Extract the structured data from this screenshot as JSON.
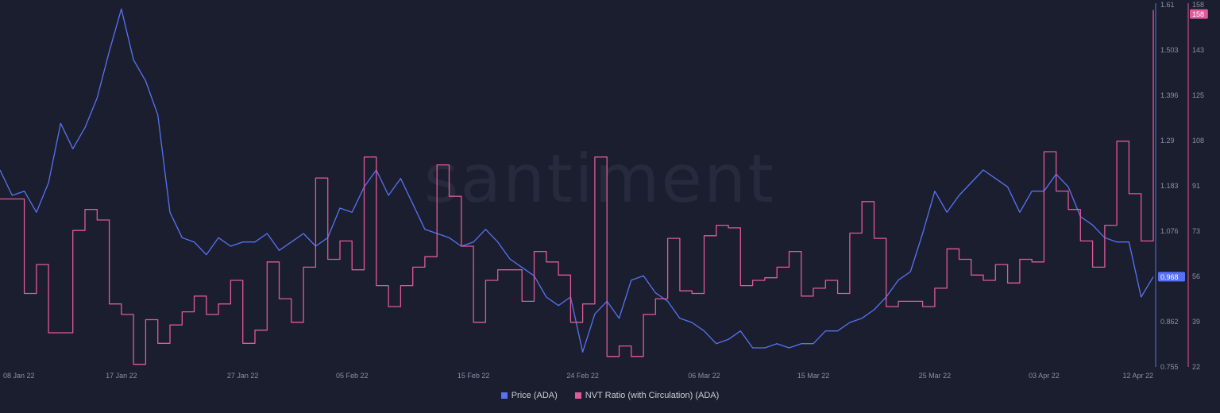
{
  "watermark": "santiment",
  "colors": {
    "background": "#1b1e2e",
    "price": "#5872f5",
    "nvt": "#e05a9a",
    "axis_text": "#8a90a6"
  },
  "legend": {
    "price_label": "Price (ADA)",
    "nvt_label": "NVT Ratio (with Circulation) (ADA)"
  },
  "chart_data": {
    "type": "line",
    "x_start": "2022-01-07",
    "x_end": "2022-04-12",
    "x_ticks": [
      "08 Jan 22",
      "17 Jan 22",
      "27 Jan 22",
      "05 Feb 22",
      "15 Feb 22",
      "24 Feb 22",
      "06 Mar 22",
      "15 Mar 22",
      "25 Mar 22",
      "03 Apr 22",
      "12 Apr 22"
    ],
    "x_tick_dates": [
      "2022-01-08",
      "2022-01-17",
      "2022-01-27",
      "2022-02-05",
      "2022-02-15",
      "2022-02-24",
      "2022-03-06",
      "2022-03-15",
      "2022-03-25",
      "2022-04-03",
      "2022-04-12"
    ],
    "grid": false,
    "legend_position": "bottom-center",
    "price_axis": {
      "ticks": [
        "1.61",
        "1.503",
        "1.396",
        "1.29",
        "1.183",
        "1.076",
        "0.968",
        "0.862",
        "0.755"
      ],
      "range": [
        0.755,
        1.61
      ],
      "current": "0.968"
    },
    "nvt_axis": {
      "ticks": [
        "158",
        "143",
        "125",
        "108",
        "91",
        "73",
        "56",
        "39",
        "22"
      ],
      "range": [
        22,
        160
      ],
      "current": "158"
    },
    "series": [
      {
        "name": "Price (ADA)",
        "axis": "price",
        "points": [
          [
            "2022-01-07",
            1.22
          ],
          [
            "2022-01-08",
            1.16
          ],
          [
            "2022-01-09",
            1.17
          ],
          [
            "2022-01-10",
            1.12
          ],
          [
            "2022-01-11",
            1.19
          ],
          [
            "2022-01-12",
            1.33
          ],
          [
            "2022-01-13",
            1.27
          ],
          [
            "2022-01-14",
            1.32
          ],
          [
            "2022-01-15",
            1.39
          ],
          [
            "2022-01-16",
            1.5
          ],
          [
            "2022-01-17",
            1.6
          ],
          [
            "2022-01-18",
            1.48
          ],
          [
            "2022-01-19",
            1.43
          ],
          [
            "2022-01-20",
            1.35
          ],
          [
            "2022-01-21",
            1.12
          ],
          [
            "2022-01-22",
            1.06
          ],
          [
            "2022-01-23",
            1.05
          ],
          [
            "2022-01-24",
            1.02
          ],
          [
            "2022-01-25",
            1.06
          ],
          [
            "2022-01-26",
            1.04
          ],
          [
            "2022-01-27",
            1.05
          ],
          [
            "2022-01-28",
            1.05
          ],
          [
            "2022-01-29",
            1.07
          ],
          [
            "2022-01-30",
            1.03
          ],
          [
            "2022-01-31",
            1.05
          ],
          [
            "2022-02-01",
            1.07
          ],
          [
            "2022-02-02",
            1.04
          ],
          [
            "2022-02-03",
            1.06
          ],
          [
            "2022-02-04",
            1.13
          ],
          [
            "2022-02-05",
            1.12
          ],
          [
            "2022-02-06",
            1.18
          ],
          [
            "2022-02-07",
            1.22
          ],
          [
            "2022-02-08",
            1.16
          ],
          [
            "2022-02-09",
            1.2
          ],
          [
            "2022-02-10",
            1.14
          ],
          [
            "2022-02-11",
            1.08
          ],
          [
            "2022-02-12",
            1.07
          ],
          [
            "2022-02-13",
            1.06
          ],
          [
            "2022-02-14",
            1.04
          ],
          [
            "2022-02-15",
            1.05
          ],
          [
            "2022-02-16",
            1.08
          ],
          [
            "2022-02-17",
            1.05
          ],
          [
            "2022-02-18",
            1.01
          ],
          [
            "2022-02-19",
            0.99
          ],
          [
            "2022-02-20",
            0.97
          ],
          [
            "2022-02-21",
            0.92
          ],
          [
            "2022-02-22",
            0.9
          ],
          [
            "2022-02-23",
            0.92
          ],
          [
            "2022-02-24",
            0.79
          ],
          [
            "2022-02-25",
            0.88
          ],
          [
            "2022-02-26",
            0.91
          ],
          [
            "2022-02-27",
            0.87
          ],
          [
            "2022-02-28",
            0.96
          ],
          [
            "2022-03-01",
            0.97
          ],
          [
            "2022-03-02",
            0.93
          ],
          [
            "2022-03-03",
            0.91
          ],
          [
            "2022-03-04",
            0.87
          ],
          [
            "2022-03-05",
            0.86
          ],
          [
            "2022-03-06",
            0.84
          ],
          [
            "2022-03-07",
            0.81
          ],
          [
            "2022-03-08",
            0.82
          ],
          [
            "2022-03-09",
            0.84
          ],
          [
            "2022-03-10",
            0.8
          ],
          [
            "2022-03-11",
            0.8
          ],
          [
            "2022-03-12",
            0.81
          ],
          [
            "2022-03-13",
            0.8
          ],
          [
            "2022-03-14",
            0.81
          ],
          [
            "2022-03-15",
            0.81
          ],
          [
            "2022-03-16",
            0.84
          ],
          [
            "2022-03-17",
            0.84
          ],
          [
            "2022-03-18",
            0.86
          ],
          [
            "2022-03-19",
            0.87
          ],
          [
            "2022-03-20",
            0.89
          ],
          [
            "2022-03-21",
            0.92
          ],
          [
            "2022-03-22",
            0.96
          ],
          [
            "2022-03-23",
            0.98
          ],
          [
            "2022-03-24",
            1.07
          ],
          [
            "2022-03-25",
            1.17
          ],
          [
            "2022-03-26",
            1.12
          ],
          [
            "2022-03-27",
            1.16
          ],
          [
            "2022-03-28",
            1.19
          ],
          [
            "2022-03-29",
            1.22
          ],
          [
            "2022-03-30",
            1.2
          ],
          [
            "2022-03-31",
            1.18
          ],
          [
            "2022-04-01",
            1.12
          ],
          [
            "2022-04-02",
            1.17
          ],
          [
            "2022-04-03",
            1.17
          ],
          [
            "2022-04-04",
            1.21
          ],
          [
            "2022-04-05",
            1.18
          ],
          [
            "2022-04-06",
            1.11
          ],
          [
            "2022-04-07",
            1.09
          ],
          [
            "2022-04-08",
            1.06
          ],
          [
            "2022-04-09",
            1.05
          ],
          [
            "2022-04-10",
            1.05
          ],
          [
            "2022-04-11",
            0.92
          ],
          [
            "2022-04-12",
            0.968
          ]
        ]
      },
      {
        "name": "NVT Ratio (with Circulation) (ADA)",
        "axis": "nvt",
        "points": [
          [
            "2022-01-07",
            86
          ],
          [
            "2022-01-09",
            50
          ],
          [
            "2022-01-10",
            61
          ],
          [
            "2022-01-11",
            35
          ],
          [
            "2022-01-13",
            74
          ],
          [
            "2022-01-14",
            82
          ],
          [
            "2022-01-15",
            78
          ],
          [
            "2022-01-16",
            46
          ],
          [
            "2022-01-17",
            42
          ],
          [
            "2022-01-18",
            23
          ],
          [
            "2022-01-19",
            40
          ],
          [
            "2022-01-20",
            31
          ],
          [
            "2022-01-21",
            38
          ],
          [
            "2022-01-22",
            43
          ],
          [
            "2022-01-23",
            49
          ],
          [
            "2022-01-24",
            42
          ],
          [
            "2022-01-25",
            46
          ],
          [
            "2022-01-26",
            55
          ],
          [
            "2022-01-27",
            31
          ],
          [
            "2022-01-28",
            36
          ],
          [
            "2022-01-29",
            62
          ],
          [
            "2022-01-30",
            48
          ],
          [
            "2022-01-31",
            39
          ],
          [
            "2022-02-01",
            60
          ],
          [
            "2022-02-02",
            94
          ],
          [
            "2022-02-03",
            63
          ],
          [
            "2022-02-04",
            70
          ],
          [
            "2022-02-05",
            59
          ],
          [
            "2022-02-06",
            102
          ],
          [
            "2022-02-07",
            53
          ],
          [
            "2022-02-08",
            45
          ],
          [
            "2022-02-09",
            53
          ],
          [
            "2022-02-10",
            60
          ],
          [
            "2022-02-11",
            64
          ],
          [
            "2022-02-12",
            99
          ],
          [
            "2022-02-13",
            87
          ],
          [
            "2022-02-14",
            68
          ],
          [
            "2022-02-15",
            39
          ],
          [
            "2022-02-16",
            55
          ],
          [
            "2022-02-17",
            59
          ],
          [
            "2022-02-18",
            59
          ],
          [
            "2022-02-19",
            47
          ],
          [
            "2022-02-20",
            66
          ],
          [
            "2022-02-21",
            62
          ],
          [
            "2022-02-22",
            57
          ],
          [
            "2022-02-23",
            39
          ],
          [
            "2022-02-24",
            46
          ],
          [
            "2022-02-25",
            102
          ],
          [
            "2022-02-26",
            26
          ],
          [
            "2022-02-27",
            30
          ],
          [
            "2022-02-28",
            26
          ],
          [
            "2022-03-01",
            42
          ],
          [
            "2022-03-02",
            48
          ],
          [
            "2022-03-03",
            71
          ],
          [
            "2022-03-04",
            51
          ],
          [
            "2022-03-05",
            50
          ],
          [
            "2022-03-06",
            72
          ],
          [
            "2022-03-07",
            76
          ],
          [
            "2022-03-08",
            75
          ],
          [
            "2022-03-09",
            53
          ],
          [
            "2022-03-10",
            55
          ],
          [
            "2022-03-11",
            56
          ],
          [
            "2022-03-12",
            60
          ],
          [
            "2022-03-13",
            66
          ],
          [
            "2022-03-14",
            49
          ],
          [
            "2022-03-15",
            52
          ],
          [
            "2022-03-16",
            55
          ],
          [
            "2022-03-17",
            50
          ],
          [
            "2022-03-18",
            73
          ],
          [
            "2022-03-19",
            85
          ],
          [
            "2022-03-20",
            71
          ],
          [
            "2022-03-21",
            45
          ],
          [
            "2022-03-22",
            47
          ],
          [
            "2022-03-23",
            47
          ],
          [
            "2022-03-24",
            45
          ],
          [
            "2022-03-25",
            52
          ],
          [
            "2022-03-26",
            67
          ],
          [
            "2022-03-27",
            63
          ],
          [
            "2022-03-28",
            57
          ],
          [
            "2022-03-29",
            55
          ],
          [
            "2022-03-30",
            61
          ],
          [
            "2022-03-31",
            54
          ],
          [
            "2022-04-01",
            63
          ],
          [
            "2022-04-02",
            62
          ],
          [
            "2022-04-03",
            104
          ],
          [
            "2022-04-04",
            89
          ],
          [
            "2022-04-05",
            82
          ],
          [
            "2022-04-06",
            70
          ],
          [
            "2022-04-07",
            60
          ],
          [
            "2022-04-08",
            76
          ],
          [
            "2022-04-09",
            108
          ],
          [
            "2022-04-10",
            88
          ],
          [
            "2022-04-11",
            70
          ],
          [
            "2022-04-12",
            158
          ]
        ]
      }
    ]
  }
}
